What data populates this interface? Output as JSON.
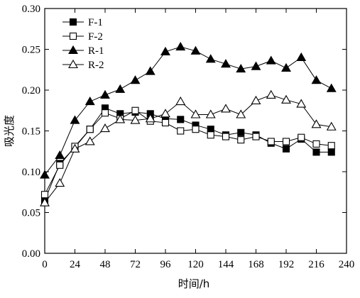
{
  "chart_data": {
    "type": "line",
    "title": "",
    "xlabel": "时间/h",
    "ylabel": "吸光度",
    "xlim": [
      0,
      240
    ],
    "ylim": [
      0.0,
      0.3
    ],
    "x_ticks": [
      0,
      24,
      48,
      72,
      96,
      120,
      144,
      168,
      192,
      216,
      240
    ],
    "y_ticks": [
      "0.00",
      "0.05",
      "0.10",
      "0.15",
      "0.20",
      "0.25",
      "0.30"
    ],
    "grid": false,
    "legend_position": "top-left",
    "series": [
      {
        "name": "F-1",
        "marker": "square-filled",
        "color": "#000000",
        "x": [
          0,
          12,
          24,
          36,
          48,
          60,
          72,
          84,
          96,
          108,
          120,
          132,
          144,
          156,
          168,
          180,
          192,
          204,
          216,
          228
        ],
        "y": [
          0.065,
          0.11,
          0.13,
          0.152,
          0.178,
          0.171,
          0.173,
          0.171,
          0.165,
          0.164,
          0.157,
          0.152,
          0.145,
          0.148,
          0.145,
          0.135,
          0.128,
          0.14,
          0.124,
          0.124
        ]
      },
      {
        "name": "F-2",
        "marker": "square-open",
        "color": "#000000",
        "x": [
          0,
          12,
          24,
          36,
          48,
          60,
          72,
          84,
          96,
          108,
          120,
          132,
          144,
          156,
          168,
          180,
          192,
          204,
          216,
          228
        ],
        "y": [
          0.072,
          0.108,
          0.131,
          0.152,
          0.172,
          0.165,
          0.175,
          0.162,
          0.16,
          0.15,
          0.152,
          0.145,
          0.143,
          0.139,
          0.143,
          0.137,
          0.137,
          0.142,
          0.134,
          0.132
        ]
      },
      {
        "name": "R-1",
        "marker": "triangle-filled",
        "color": "#000000",
        "x": [
          0,
          12,
          24,
          36,
          48,
          60,
          72,
          84,
          96,
          108,
          120,
          132,
          144,
          156,
          168,
          180,
          192,
          204,
          216,
          228
        ],
        "y": [
          0.096,
          0.12,
          0.163,
          0.186,
          0.194,
          0.201,
          0.212,
          0.223,
          0.247,
          0.253,
          0.248,
          0.238,
          0.232,
          0.226,
          0.229,
          0.236,
          0.227,
          0.24,
          0.212,
          0.202
        ]
      },
      {
        "name": "R-2",
        "marker": "triangle-open",
        "color": "#000000",
        "x": [
          0,
          12,
          24,
          36,
          48,
          60,
          72,
          84,
          96,
          108,
          120,
          132,
          144,
          156,
          168,
          180,
          192,
          204,
          216,
          228
        ],
        "y": [
          0.062,
          0.086,
          0.128,
          0.137,
          0.153,
          0.164,
          0.163,
          0.165,
          0.171,
          0.186,
          0.17,
          0.17,
          0.177,
          0.17,
          0.187,
          0.194,
          0.188,
          0.183,
          0.158,
          0.155
        ]
      }
    ]
  }
}
